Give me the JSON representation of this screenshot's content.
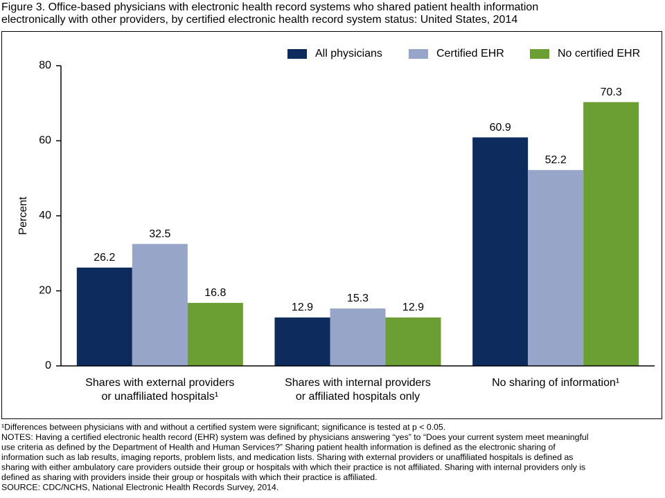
{
  "chart_data": {
    "type": "bar",
    "title": [
      "Figure 3. Office-based physicians with electronic health record systems who shared patient health information",
      "electronically with other providers, by certified electronic health record system status: United States, 2014"
    ],
    "y_label": "Percent",
    "categories": [
      [
        "Shares with external providers",
        "or unaffiliated hospitals¹"
      ],
      [
        "Shares with internal providers",
        "or affiliated hospitals only"
      ],
      [
        "No sharing of information¹"
      ]
    ],
    "series": [
      {
        "name": "All physicians",
        "color": "#0d2b5c",
        "values": [
          26.2,
          12.9,
          60.9
        ]
      },
      {
        "name": "Certified EHR",
        "color": "#97a5c8",
        "values": [
          32.5,
          15.3,
          52.2
        ]
      },
      {
        "name": "No certified EHR",
        "color": "#6b9e33",
        "values": [
          16.8,
          12.9,
          70.3
        ]
      }
    ],
    "ylim": [
      0,
      80
    ],
    "yticks": [
      0,
      20,
      40,
      60,
      80
    ],
    "grid": false,
    "legend": "top-right",
    "footnotes": [
      "¹Differences between physicians with and without a certified system were significant; significance is tested at p < 0.05.",
      "NOTES: Having a certified electronic health record (EHR) system was defined by physicians answering “yes” to “Does your current system meet meaningful",
      "use criteria as defined by the Department of Health and Human Services?” Sharing patient health information is defined as the electronic sharing of",
      "information such as lab results, imaging reports, problem lists, and medication lists. Sharing with external providers or unaffiliated hospitals is defined as",
      "sharing with either ambulatory care providers outside their group or hospitals with which their practice is not affiliated. Sharing with internal providers only is",
      "defined as sharing with providers inside their group or hospitals with which their practice is affiliated.",
      "SOURCE: CDC/NCHS, National Electronic Health Records Survey, 2014."
    ]
  }
}
